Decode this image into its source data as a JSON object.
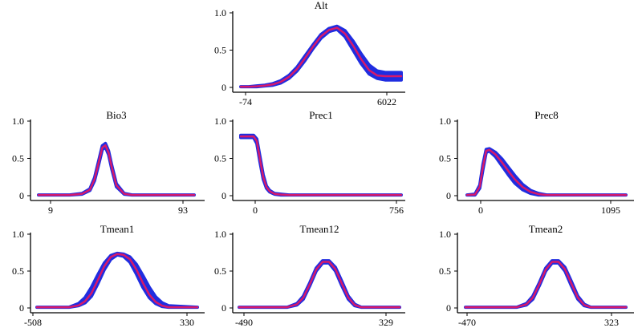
{
  "chart_data": [
    {
      "type": "line",
      "title": "Alt",
      "ylim": [
        0,
        1.0
      ],
      "yticks": [
        "0",
        "0.5",
        "1.0"
      ],
      "xticks": [
        "-74",
        "6022"
      ],
      "series": [
        {
          "band": true,
          "x": [
            0.0,
            0.05,
            0.1,
            0.15,
            0.2,
            0.25,
            0.3,
            0.35,
            0.4,
            0.45,
            0.5,
            0.55,
            0.6,
            0.65,
            0.7,
            0.75,
            0.8,
            0.85,
            0.9,
            0.95,
            1.0
          ],
          "low": [
            0.01,
            0.01,
            0.01,
            0.02,
            0.03,
            0.06,
            0.12,
            0.22,
            0.36,
            0.52,
            0.66,
            0.75,
            0.78,
            0.68,
            0.5,
            0.32,
            0.18,
            0.12,
            0.1,
            0.1,
            0.1
          ],
          "high": [
            0.01,
            0.01,
            0.02,
            0.03,
            0.05,
            0.09,
            0.16,
            0.27,
            0.42,
            0.57,
            0.71,
            0.79,
            0.82,
            0.76,
            0.62,
            0.45,
            0.3,
            0.22,
            0.2,
            0.2,
            0.2
          ]
        },
        {
          "x": [
            0.0,
            0.05,
            0.1,
            0.15,
            0.2,
            0.25,
            0.3,
            0.35,
            0.4,
            0.45,
            0.5,
            0.55,
            0.6,
            0.65,
            0.7,
            0.75,
            0.8,
            0.85,
            0.9,
            0.95,
            1.0
          ],
          "values": [
            0.01,
            0.01,
            0.015,
            0.025,
            0.04,
            0.075,
            0.14,
            0.245,
            0.39,
            0.545,
            0.685,
            0.77,
            0.8,
            0.72,
            0.56,
            0.38,
            0.23,
            0.16,
            0.15,
            0.15,
            0.15
          ]
        }
      ]
    },
    {
      "type": "line",
      "title": "Bio3",
      "ylim": [
        0,
        1.0
      ],
      "yticks": [
        "0",
        "0.5",
        "1.0"
      ],
      "xticks": [
        "9",
        "93"
      ],
      "series": [
        {
          "band": true,
          "x": [
            0.0,
            0.2,
            0.28,
            0.33,
            0.36,
            0.39,
            0.41,
            0.43,
            0.45,
            0.47,
            0.5,
            0.55,
            0.6,
            1.0
          ],
          "low": [
            0.01,
            0.01,
            0.02,
            0.07,
            0.2,
            0.45,
            0.62,
            0.65,
            0.55,
            0.36,
            0.12,
            0.02,
            0.01,
            0.01
          ],
          "high": [
            0.01,
            0.01,
            0.03,
            0.09,
            0.24,
            0.5,
            0.67,
            0.7,
            0.6,
            0.41,
            0.16,
            0.03,
            0.01,
            0.01
          ]
        },
        {
          "x": [
            0.0,
            0.2,
            0.28,
            0.33,
            0.36,
            0.39,
            0.41,
            0.43,
            0.45,
            0.47,
            0.5,
            0.55,
            0.6,
            1.0
          ],
          "values": [
            0.01,
            0.01,
            0.025,
            0.08,
            0.22,
            0.475,
            0.645,
            0.675,
            0.575,
            0.385,
            0.14,
            0.025,
            0.01,
            0.01
          ]
        }
      ]
    },
    {
      "type": "line",
      "title": "Prec1",
      "ylim": [
        0,
        1.0
      ],
      "yticks": [
        "0",
        "0.5",
        "1.0"
      ],
      "xticks": [
        "0",
        "756"
      ],
      "series": [
        {
          "band": true,
          "x": [
            0.0,
            0.08,
            0.1,
            0.12,
            0.14,
            0.16,
            0.18,
            0.21,
            0.25,
            0.3,
            0.4,
            1.0
          ],
          "low": [
            0.78,
            0.78,
            0.7,
            0.45,
            0.22,
            0.1,
            0.05,
            0.02,
            0.01,
            0.01,
            0.01,
            0.01
          ],
          "high": [
            0.81,
            0.81,
            0.76,
            0.52,
            0.28,
            0.13,
            0.07,
            0.03,
            0.02,
            0.01,
            0.01,
            0.01
          ]
        },
        {
          "x": [
            0.0,
            0.08,
            0.1,
            0.12,
            0.14,
            0.16,
            0.18,
            0.21,
            0.25,
            0.3,
            0.4,
            1.0
          ],
          "values": [
            0.795,
            0.795,
            0.73,
            0.485,
            0.25,
            0.115,
            0.06,
            0.025,
            0.015,
            0.01,
            0.01,
            0.01
          ]
        }
      ]
    },
    {
      "type": "line",
      "title": "Prec8",
      "ylim": [
        0,
        1.0
      ],
      "yticks": [
        "0",
        "0.5",
        "1.0"
      ],
      "xticks": [
        "0",
        "1095"
      ],
      "series": [
        {
          "band": true,
          "x": [
            0.0,
            0.05,
            0.08,
            0.1,
            0.12,
            0.14,
            0.18,
            0.22,
            0.26,
            0.3,
            0.35,
            0.4,
            0.45,
            0.5,
            0.55,
            1.0
          ],
          "low": [
            0.01,
            0.01,
            0.1,
            0.35,
            0.58,
            0.6,
            0.52,
            0.4,
            0.28,
            0.17,
            0.08,
            0.03,
            0.01,
            0.01,
            0.01,
            0.01
          ],
          "high": [
            0.01,
            0.02,
            0.14,
            0.42,
            0.62,
            0.63,
            0.58,
            0.49,
            0.38,
            0.27,
            0.15,
            0.07,
            0.03,
            0.01,
            0.01,
            0.01
          ]
        },
        {
          "x": [
            0.0,
            0.05,
            0.08,
            0.1,
            0.12,
            0.14,
            0.18,
            0.22,
            0.26,
            0.3,
            0.35,
            0.4,
            0.45,
            0.5,
            0.55,
            1.0
          ],
          "values": [
            0.01,
            0.015,
            0.12,
            0.385,
            0.6,
            0.615,
            0.55,
            0.445,
            0.33,
            0.22,
            0.115,
            0.05,
            0.02,
            0.01,
            0.01,
            0.01
          ]
        }
      ]
    },
    {
      "type": "line",
      "title": "Tmean1",
      "ylim": [
        0,
        1.0
      ],
      "yticks": [
        "0",
        "0.5",
        "1.0"
      ],
      "xticks": [
        "-508",
        "330"
      ],
      "series": [
        {
          "band": true,
          "x": [
            0.0,
            0.2,
            0.26,
            0.3,
            0.34,
            0.38,
            0.42,
            0.46,
            0.5,
            0.54,
            0.58,
            0.62,
            0.66,
            0.7,
            0.74,
            0.78,
            0.82,
            1.0
          ],
          "low": [
            0.01,
            0.01,
            0.03,
            0.07,
            0.16,
            0.33,
            0.52,
            0.66,
            0.72,
            0.7,
            0.62,
            0.46,
            0.28,
            0.14,
            0.06,
            0.02,
            0.01,
            0.01
          ],
          "high": [
            0.01,
            0.01,
            0.06,
            0.14,
            0.28,
            0.45,
            0.61,
            0.71,
            0.74,
            0.73,
            0.69,
            0.59,
            0.44,
            0.28,
            0.15,
            0.07,
            0.03,
            0.01
          ]
        },
        {
          "x": [
            0.0,
            0.2,
            0.26,
            0.3,
            0.34,
            0.38,
            0.42,
            0.46,
            0.5,
            0.54,
            0.58,
            0.62,
            0.66,
            0.7,
            0.74,
            0.78,
            0.82,
            1.0
          ],
          "values": [
            0.01,
            0.01,
            0.035,
            0.09,
            0.2,
            0.38,
            0.565,
            0.69,
            0.73,
            0.72,
            0.66,
            0.52,
            0.34,
            0.18,
            0.08,
            0.03,
            0.01,
            0.01
          ]
        }
      ]
    },
    {
      "type": "line",
      "title": "Tmean12",
      "ylim": [
        0,
        1.0
      ],
      "yticks": [
        "0",
        "0.5",
        "1.0"
      ],
      "xticks": [
        "-490",
        "329"
      ],
      "series": [
        {
          "band": true,
          "x": [
            0.0,
            0.3,
            0.36,
            0.4,
            0.44,
            0.48,
            0.52,
            0.56,
            0.6,
            0.64,
            0.68,
            0.72,
            0.76,
            1.0
          ],
          "low": [
            0.01,
            0.01,
            0.04,
            0.12,
            0.3,
            0.5,
            0.61,
            0.61,
            0.5,
            0.3,
            0.12,
            0.03,
            0.01,
            0.01
          ],
          "high": [
            0.01,
            0.01,
            0.06,
            0.16,
            0.34,
            0.54,
            0.64,
            0.64,
            0.55,
            0.36,
            0.16,
            0.05,
            0.01,
            0.01
          ]
        },
        {
          "x": [
            0.0,
            0.3,
            0.36,
            0.4,
            0.44,
            0.48,
            0.52,
            0.56,
            0.6,
            0.64,
            0.68,
            0.72,
            0.76,
            1.0
          ],
          "values": [
            0.01,
            0.01,
            0.05,
            0.14,
            0.32,
            0.52,
            0.625,
            0.625,
            0.525,
            0.33,
            0.14,
            0.04,
            0.01,
            0.01
          ]
        }
      ]
    },
    {
      "type": "line",
      "title": "Tmean2",
      "ylim": [
        0,
        1.0
      ],
      "yticks": [
        "0",
        "0.5",
        "1.0"
      ],
      "xticks": [
        "-470",
        "323"
      ],
      "series": [
        {
          "band": true,
          "x": [
            0.0,
            0.32,
            0.38,
            0.42,
            0.46,
            0.5,
            0.54,
            0.58,
            0.62,
            0.66,
            0.7,
            0.74,
            0.78,
            1.0
          ],
          "low": [
            0.01,
            0.01,
            0.04,
            0.12,
            0.3,
            0.5,
            0.61,
            0.61,
            0.5,
            0.3,
            0.12,
            0.03,
            0.01,
            0.01
          ],
          "high": [
            0.01,
            0.01,
            0.06,
            0.16,
            0.34,
            0.54,
            0.64,
            0.64,
            0.55,
            0.36,
            0.16,
            0.05,
            0.01,
            0.01
          ]
        },
        {
          "x": [
            0.0,
            0.32,
            0.38,
            0.42,
            0.46,
            0.5,
            0.54,
            0.58,
            0.62,
            0.66,
            0.7,
            0.74,
            0.78,
            1.0
          ],
          "values": [
            0.01,
            0.01,
            0.05,
            0.14,
            0.32,
            0.52,
            0.625,
            0.625,
            0.525,
            0.33,
            0.14,
            0.04,
            0.01,
            0.01
          ]
        }
      ]
    }
  ],
  "colors": {
    "band": "#1f2de0",
    "line": "#d6196b",
    "axis": "#000000"
  }
}
